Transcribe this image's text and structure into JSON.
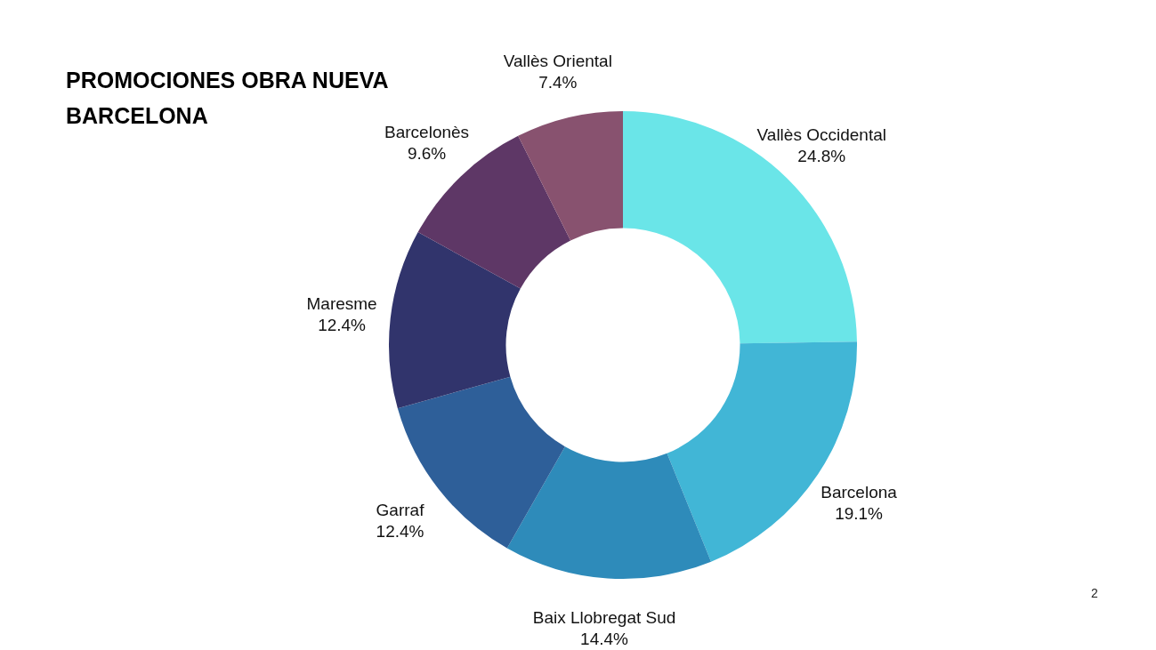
{
  "chart_data": {
    "type": "donut",
    "title": "PROMOCIONES OBRA NUEVA BARCELONA",
    "categories": [
      "Vallès Occidental",
      "Barcelona",
      "Baix Llobregat Sud",
      "Garraf",
      "Maresme",
      "Barcelonès",
      "Vallès Oriental"
    ],
    "values": [
      24.8,
      19.1,
      14.4,
      12.4,
      12.4,
      9.6,
      7.4
    ],
    "value_labels": [
      "24.8%",
      "19.1%",
      "14.4%",
      "12.4%",
      "12.4%",
      "9.6%",
      "7.4%"
    ],
    "colors": [
      "#6ae5e8",
      "#41b6d6",
      "#2e8bba",
      "#2e5f99",
      "#31346c",
      "#5e3766",
      "#88526f"
    ],
    "legend": false,
    "annotations": [
      "2"
    ]
  }
}
